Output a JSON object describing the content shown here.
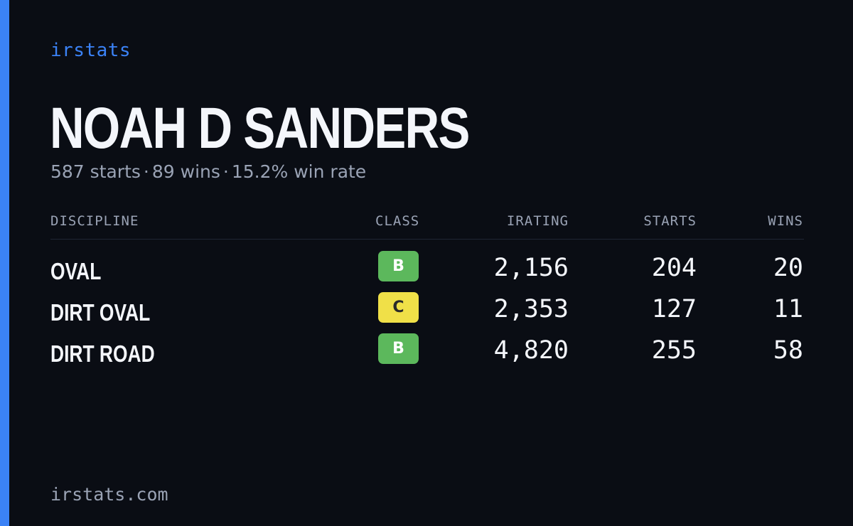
{
  "brand": "irstats",
  "driver": {
    "name": "NOAH D SANDERS",
    "starts_text": "587 starts",
    "wins_text": "89 wins",
    "win_rate_text": "15.2% win rate",
    "separator": "·"
  },
  "table": {
    "headers": {
      "discipline": "DISCIPLINE",
      "class": "CLASS",
      "irating": "IRATING",
      "starts": "STARTS",
      "wins": "WINS"
    },
    "rows": [
      {
        "discipline": "OVAL",
        "class": "B",
        "class_color": "#5cb85c",
        "class_text_color": "#ffffff",
        "irating": "2,156",
        "starts": "204",
        "wins": "20"
      },
      {
        "discipline": "DIRT OVAL",
        "class": "C",
        "class_color": "#f0e048",
        "class_text_color": "#2a2a2a",
        "irating": "2,353",
        "starts": "127",
        "wins": "11"
      },
      {
        "discipline": "DIRT ROAD",
        "class": "B",
        "class_color": "#5cb85c",
        "class_text_color": "#ffffff",
        "irating": "4,820",
        "starts": "255",
        "wins": "58"
      }
    ]
  },
  "footer": "irstats.com",
  "colors": {
    "background": "#0a0d14",
    "accent": "#3b82f6",
    "text_primary": "#f4f6fb",
    "text_muted": "#9aa3b5"
  }
}
